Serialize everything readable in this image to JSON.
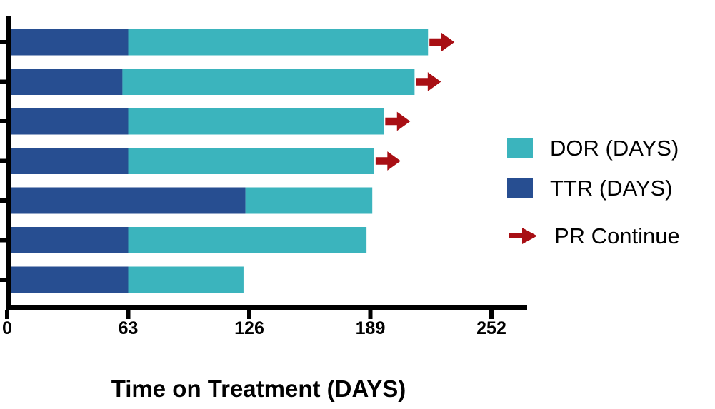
{
  "chart_data": {
    "type": "bar",
    "orientation": "horizontal",
    "stacked": true,
    "title": "",
    "xlabel": "Time on Treatment (DAYS)",
    "ylabel": "",
    "x_ticks": [
      0,
      63,
      126,
      189,
      252
    ],
    "xlim": [
      0,
      270
    ],
    "unit": "days",
    "grid": false,
    "legend_position": "right",
    "series_order": [
      "TTR (DAYS)",
      "DOR (DAYS)"
    ],
    "colors": {
      "dor": "#3BB4BD",
      "ttr": "#274E91",
      "arrow": "#A80F14",
      "axis": "#000000"
    },
    "patients": [
      {
        "ttr": 63,
        "dor": 156,
        "total": 219,
        "pr_continue": true
      },
      {
        "ttr": 60,
        "dor": 152,
        "total": 212,
        "pr_continue": true
      },
      {
        "ttr": 63,
        "dor": 133,
        "total": 196,
        "pr_continue": true
      },
      {
        "ttr": 63,
        "dor": 128,
        "total": 191,
        "pr_continue": true
      },
      {
        "ttr": 124,
        "dor": 66,
        "total": 190,
        "pr_continue": false
      },
      {
        "ttr": 63,
        "dor": 124,
        "total": 187,
        "pr_continue": false
      },
      {
        "ttr": 63,
        "dor": 60,
        "total": 123,
        "pr_continue": false
      }
    ]
  },
  "legend": {
    "dor_label": "DOR (DAYS)",
    "ttr_label": "TTR (DAYS)",
    "arrow_label": "PR Continue"
  }
}
